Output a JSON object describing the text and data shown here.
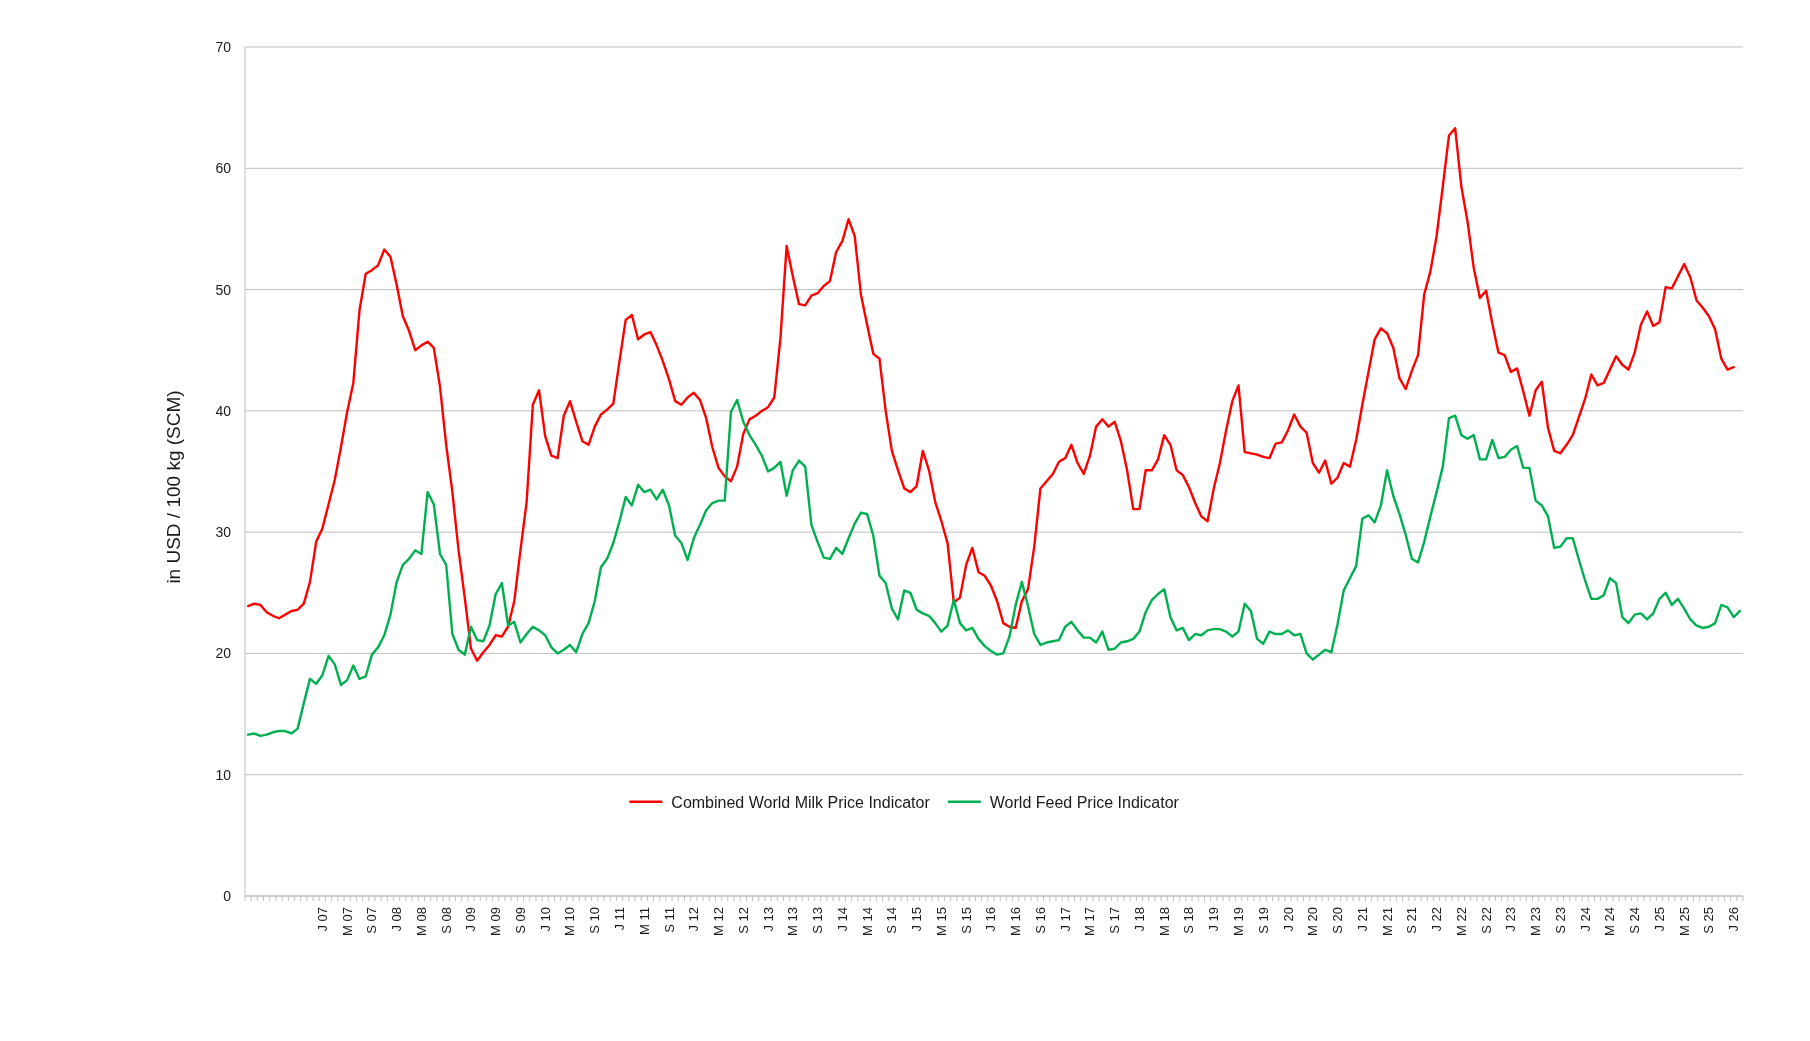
{
  "chart_data": {
    "type": "line",
    "ylabel": "in USD / 100 kg (SCM)",
    "categories": [
      null,
      null,
      null,
      null,
      null,
      null,
      null,
      null,
      null,
      null,
      null,
      null,
      "J 07",
      null,
      null,
      null,
      "M 07",
      null,
      null,
      null,
      "S 07",
      null,
      null,
      null,
      "J 08",
      null,
      null,
      null,
      "M 08",
      null,
      null,
      null,
      "S 08",
      null,
      null,
      null,
      "J 09",
      null,
      null,
      null,
      "M 09",
      null,
      null,
      null,
      "S 09",
      null,
      null,
      null,
      "J 10",
      null,
      null,
      null,
      "M 10",
      null,
      null,
      null,
      "S 10",
      null,
      null,
      null,
      "J 11",
      null,
      null,
      null,
      "M 11",
      null,
      null,
      null,
      "S 11",
      null,
      null,
      null,
      "J 12",
      null,
      null,
      null,
      "M 12",
      null,
      null,
      null,
      "S 12",
      null,
      null,
      null,
      "J 13",
      null,
      null,
      null,
      "M 13",
      null,
      null,
      null,
      "S 13",
      null,
      null,
      null,
      "J 14",
      null,
      null,
      null,
      "M 14",
      null,
      null,
      null,
      "S 14",
      null,
      null,
      null,
      "J 15",
      null,
      null,
      null,
      "M 15",
      null,
      null,
      null,
      "S 15",
      null,
      null,
      null,
      "J 16",
      null,
      null,
      null,
      "M 16",
      null,
      null,
      null,
      "S 16",
      null,
      null,
      null,
      "J 17",
      null,
      null,
      null,
      "M 17",
      null,
      null,
      null,
      "S 17",
      null,
      null,
      null,
      "J 18",
      null,
      null,
      null,
      "M 18",
      null,
      null,
      null,
      "S 18",
      null,
      null,
      null,
      "J 19",
      null,
      null,
      null,
      "M 19",
      null,
      null,
      null,
      "S 19",
      null,
      null,
      null,
      "J 20",
      null,
      null,
      null,
      "M 20",
      null,
      null,
      null,
      "S 20",
      null,
      null,
      null,
      "J 21",
      null,
      null,
      null,
      "M 21",
      null,
      null,
      null,
      "S 21",
      null,
      null,
      null,
      "J 22",
      null,
      null,
      null,
      "M 22",
      null,
      null,
      null,
      "S 22",
      null,
      null,
      null,
      "J 23",
      null,
      null,
      null,
      "M 23",
      null,
      null,
      null,
      "S 23",
      null,
      null,
      null,
      "J 24",
      null,
      null,
      null,
      "M 24",
      null,
      null,
      null,
      "S 24",
      null,
      null,
      null,
      "J 25",
      null,
      null,
      null,
      "M 25",
      null,
      null,
      null,
      "S 25",
      null,
      null,
      null,
      "J 26",
      null
    ],
    "series": [
      {
        "name": "Combined World Milk Price Indicator",
        "color": "#ff0000",
        "values": [
          23.9,
          24.1,
          24.0,
          23.4,
          23.1,
          22.9,
          23.2,
          23.5,
          23.6,
          24.1,
          25.9,
          29.2,
          30.3,
          32.3,
          34.3,
          37.0,
          39.9,
          42.3,
          48.3,
          51.3,
          51.6,
          52.0,
          53.3,
          52.7,
          50.4,
          47.8,
          46.6,
          45.0,
          45.4,
          45.7,
          45.2,
          42.0,
          37.2,
          33.3,
          28.5,
          24.6,
          20.4,
          19.4,
          20.1,
          20.7,
          21.5,
          21.4,
          22.2,
          24.3,
          28.5,
          32.5,
          40.5,
          41.7,
          37.9,
          36.3,
          36.1,
          39.6,
          40.8,
          39.1,
          37.5,
          37.2,
          38.7,
          39.7,
          40.1,
          40.6,
          44.1,
          47.5,
          47.9,
          45.9,
          46.3,
          46.5,
          45.4,
          44.1,
          42.6,
          40.8,
          40.5,
          41.1,
          41.5,
          40.9,
          39.4,
          37.0,
          35.3,
          34.6,
          34.2,
          35.4,
          38.1,
          39.3,
          39.6,
          40.0,
          40.3,
          41.1,
          46.0,
          53.6,
          51.1,
          48.8,
          48.7,
          49.5,
          49.7,
          50.3,
          50.7,
          53.1,
          54.0,
          55.8,
          54.4,
          49.6,
          47.1,
          44.7,
          44.3,
          40.0,
          36.7,
          35.1,
          33.6,
          33.3,
          33.8,
          36.7,
          35.1,
          32.5,
          30.9,
          29.1,
          24.2,
          24.6,
          27.3,
          28.7,
          26.7,
          26.4,
          25.6,
          24.3,
          22.5,
          22.2,
          22.1,
          24.3,
          25.3,
          28.8,
          33.6,
          34.2,
          34.8,
          35.8,
          36.1,
          37.2,
          35.7,
          34.8,
          36.3,
          38.7,
          39.3,
          38.7,
          39.1,
          37.5,
          35.1,
          31.9,
          31.9,
          35.1,
          35.1,
          36.0,
          38.0,
          37.2,
          35.1,
          34.7,
          33.7,
          32.4,
          31.3,
          30.9,
          33.6,
          35.7,
          38.4,
          40.8,
          42.1,
          36.6,
          36.5,
          36.4,
          36.2,
          36.1,
          37.3,
          37.4,
          38.4,
          39.7,
          38.7,
          38.2,
          35.7,
          34.9,
          35.9,
          34.0,
          34.5,
          35.7,
          35.4,
          37.6,
          40.5,
          43.2,
          45.9,
          46.8,
          46.4,
          45.2,
          42.7,
          41.8,
          43.3,
          44.6,
          49.6,
          51.5,
          54.4,
          58.5,
          62.7,
          63.3,
          58.5,
          55.6,
          51.8,
          49.3,
          49.9,
          47.2,
          44.8,
          44.6,
          43.2,
          43.5,
          41.6,
          39.6,
          41.7,
          42.4,
          38.6,
          36.7,
          36.5,
          37.2,
          38.0,
          39.5,
          41.0,
          43.0,
          42.1,
          42.3,
          43.4,
          44.5,
          43.8,
          43.4,
          44.8,
          47.1,
          48.2,
          47.0,
          47.3,
          50.2,
          50.1,
          51.1,
          52.1,
          51.0,
          49.1,
          48.5,
          47.8,
          46.7,
          44.3,
          43.4,
          43.6,
          null
        ]
      },
      {
        "name": "World Feed Price Indicator",
        "color": "#00b050",
        "values": [
          13.3,
          13.4,
          13.2,
          13.3,
          13.5,
          13.6,
          13.6,
          13.4,
          13.8,
          15.9,
          17.9,
          17.5,
          18.2,
          19.8,
          19.1,
          17.4,
          17.8,
          19.0,
          17.9,
          18.1,
          19.9,
          20.5,
          21.5,
          23.2,
          25.9,
          27.3,
          27.8,
          28.5,
          28.2,
          33.3,
          32.3,
          28.2,
          27.3,
          21.6,
          20.3,
          19.9,
          22.2,
          21.1,
          21.0,
          22.3,
          24.9,
          25.8,
          22.3,
          22.6,
          20.9,
          21.6,
          22.2,
          21.9,
          21.5,
          20.5,
          20.0,
          20.3,
          20.7,
          20.1,
          21.6,
          22.5,
          24.3,
          27.1,
          27.8,
          29.1,
          30.9,
          32.9,
          32.2,
          33.9,
          33.3,
          33.5,
          32.7,
          33.5,
          32.2,
          29.7,
          29.1,
          27.7,
          29.5,
          30.6,
          31.8,
          32.4,
          32.6,
          32.6,
          39.9,
          40.9,
          39.1,
          38.0,
          37.2,
          36.3,
          35.0,
          35.3,
          35.8,
          33.0,
          35.1,
          35.9,
          35.4,
          30.6,
          29.2,
          27.9,
          27.8,
          28.7,
          28.2,
          29.5,
          30.7,
          31.6,
          31.5,
          29.7,
          26.4,
          25.8,
          23.7,
          22.8,
          25.2,
          25.0,
          23.6,
          23.3,
          23.1,
          22.5,
          21.8,
          22.3,
          24.4,
          22.5,
          21.9,
          22.1,
          21.2,
          20.6,
          20.2,
          19.9,
          20.0,
          21.4,
          24.0,
          25.9,
          23.9,
          21.6,
          20.7,
          20.9,
          21.0,
          21.1,
          22.2,
          22.6,
          21.9,
          21.3,
          21.3,
          20.9,
          21.8,
          20.3,
          20.4,
          20.9,
          21.0,
          21.2,
          21.8,
          23.4,
          24.4,
          24.9,
          25.3,
          23.0,
          21.9,
          22.1,
          21.1,
          21.6,
          21.5,
          21.9,
          22.0,
          22.0,
          21.8,
          21.4,
          21.8,
          24.1,
          23.5,
          21.2,
          20.8,
          21.8,
          21.6,
          21.6,
          21.9,
          21.5,
          21.6,
          20.0,
          19.5,
          19.9,
          20.3,
          20.1,
          22.4,
          25.2,
          26.2,
          27.2,
          31.1,
          31.4,
          30.8,
          32.2,
          35.1,
          33.0,
          31.5,
          29.8,
          27.8,
          27.5,
          29.2,
          31.3,
          33.3,
          35.4,
          39.4,
          39.6,
          38.0,
          37.7,
          38.0,
          36.0,
          36.0,
          37.6,
          36.1,
          36.2,
          36.8,
          37.1,
          35.3,
          35.3,
          32.6,
          32.2,
          31.3,
          28.7,
          28.8,
          29.5,
          29.5,
          27.7,
          26.0,
          24.5,
          24.5,
          24.8,
          26.2,
          25.8,
          23.0,
          22.5,
          23.2,
          23.3,
          22.8,
          23.3,
          24.5,
          25.0,
          24.0,
          24.5,
          23.7,
          22.8,
          22.3,
          22.1,
          22.2,
          22.5,
          24.0,
          23.8,
          23.0,
          23.5
        ]
      }
    ],
    "ylim": [
      0,
      70
    ],
    "yticks": [
      0,
      10,
      20,
      30,
      40,
      50,
      60,
      70
    ],
    "grid": "y",
    "legend": "bottom"
  }
}
